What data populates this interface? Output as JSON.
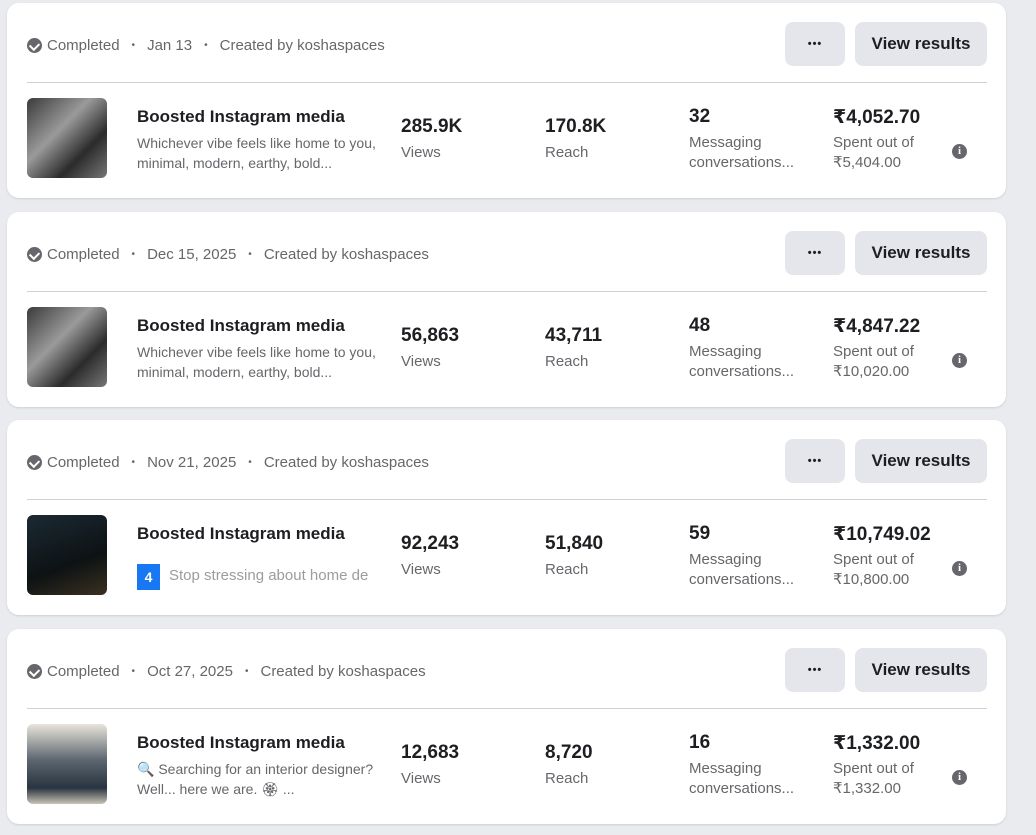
{
  "cards": [
    {
      "status": "Completed",
      "date": "Jan 13",
      "creator": "Created by koshaspaces",
      "more": "•••",
      "action": "View results",
      "title": "Boosted Instagram media",
      "description": "Whichever vibe feels like home to you, minimal, modern, earthy, bold...",
      "views": "285.9K",
      "views_label": "Views",
      "reach": "170.8K",
      "reach_label": "Reach",
      "messages": "32",
      "messages_label": "Messaging conversations...",
      "spent": "₹4,052.70",
      "spent_label": "Spent out of",
      "budget": "₹5,404.00"
    },
    {
      "status": "Completed",
      "date": "Dec 15, 2025",
      "creator": "Created by koshaspaces",
      "more": "•••",
      "action": "View results",
      "title": "Boosted Instagram media",
      "description": "Whichever vibe feels like home to you, minimal, modern, earthy, bold...",
      "views": "56,863",
      "views_label": "Views",
      "reach": "43,711",
      "reach_label": "Reach",
      "messages": "48",
      "messages_label": "Messaging conversations...",
      "spent": "₹4,847.22",
      "spent_label": "Spent out of",
      "budget": "₹10,020.00"
    },
    {
      "status": "Completed",
      "date": "Nov 21, 2025",
      "creator": "Created by koshaspaces",
      "more": "•••",
      "action": "View results",
      "title": "Boosted Instagram media",
      "badge": "4",
      "description": "Stop stressing about home de",
      "views": "92,243",
      "views_label": "Views",
      "reach": "51,840",
      "reach_label": "Reach",
      "messages": "59",
      "messages_label": "Messaging conversations...",
      "spent": "₹10,749.02",
      "spent_label": "Spent out of",
      "budget": "₹10,800.00"
    },
    {
      "status": "Completed",
      "date": "Oct 27, 2025",
      "creator": "Created by koshaspaces",
      "more": "•••",
      "action": "View results",
      "title": "Boosted Instagram media",
      "description": "🔍 Searching for an interior designer? Well... here we are. 🏵 ...",
      "views": "12,683",
      "views_label": "Views",
      "reach": "8,720",
      "reach_label": "Reach",
      "messages": "16",
      "messages_label": "Messaging conversations...",
      "spent": "₹1,332.00",
      "spent_label": "Spent out of",
      "budget": "₹1,332.00"
    }
  ]
}
